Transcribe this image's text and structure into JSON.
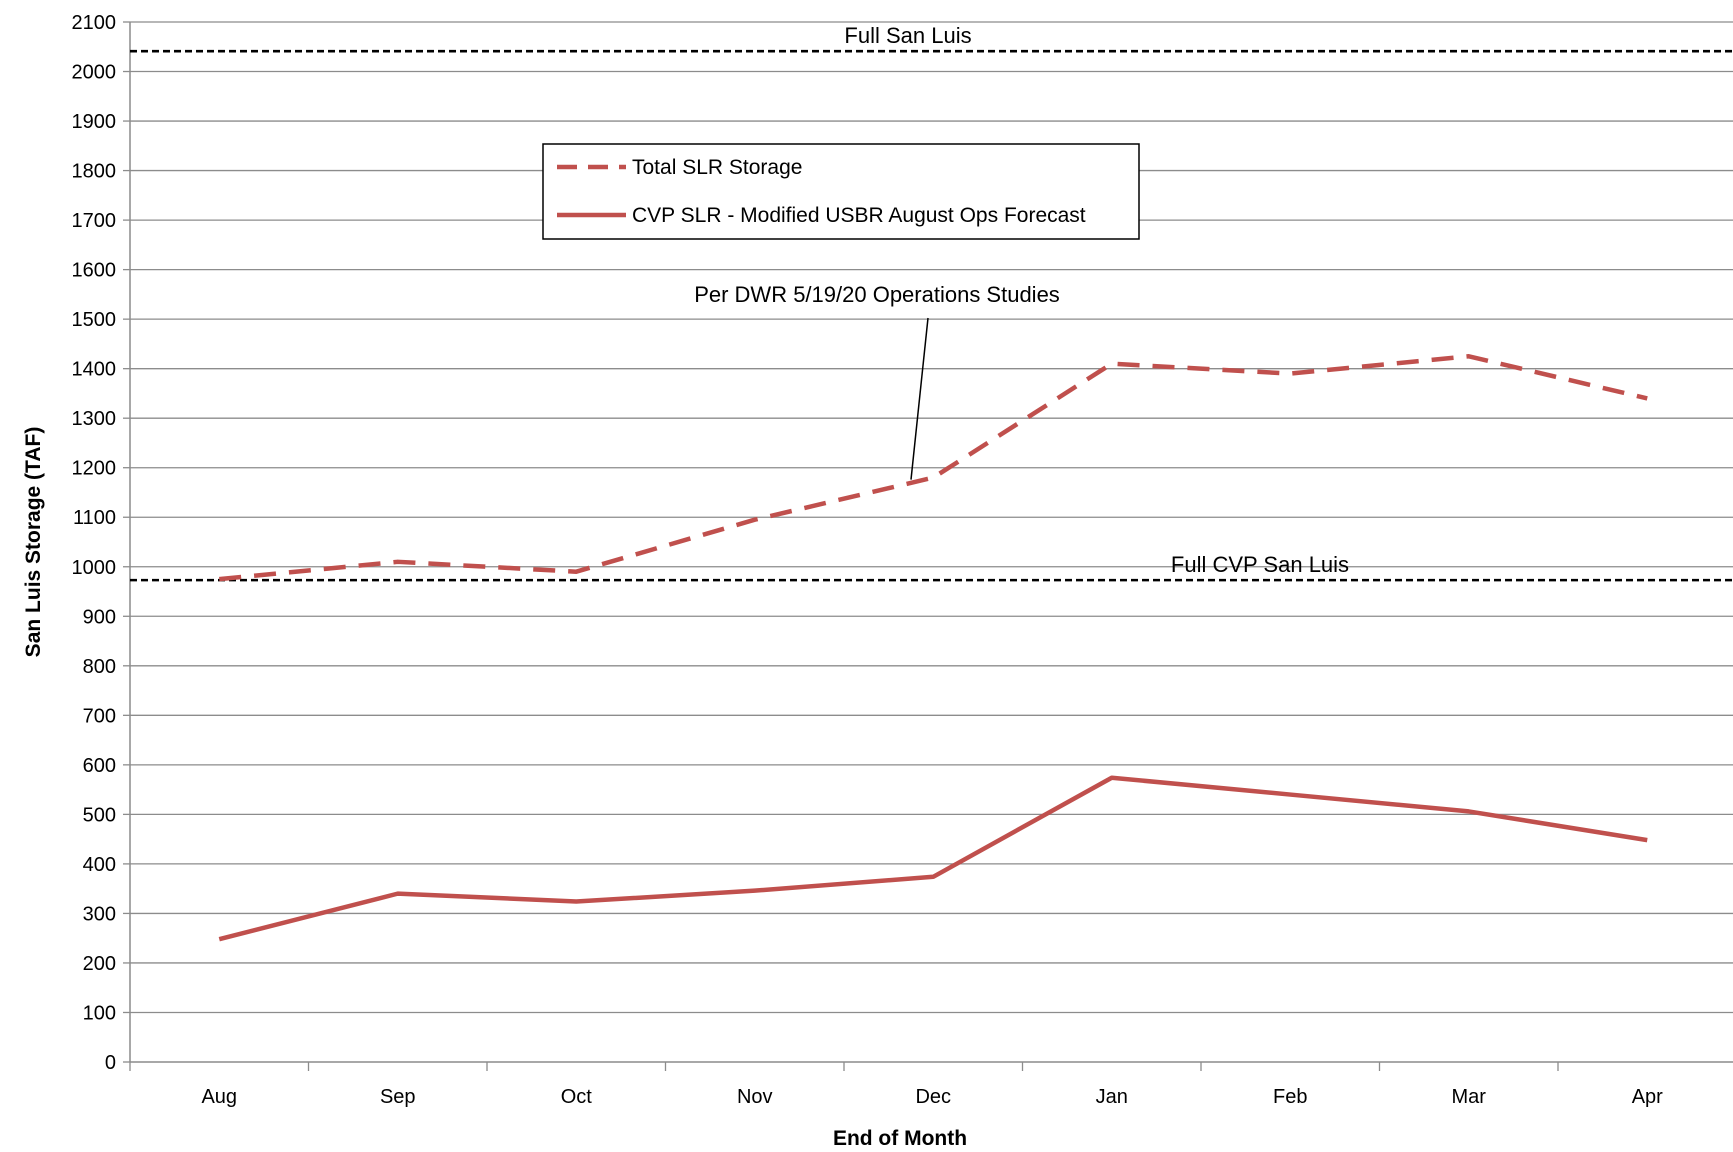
{
  "chart_data": {
    "type": "line",
    "title": "",
    "xlabel": "End of Month",
    "ylabel": "San Luis Storage (TAF)",
    "categories": [
      "Aug",
      "Sep",
      "Oct",
      "Nov",
      "Dec",
      "Jan",
      "Feb",
      "Mar",
      "Apr"
    ],
    "ylim": [
      0,
      2100
    ],
    "yticks": [
      0,
      100,
      200,
      300,
      400,
      500,
      600,
      700,
      800,
      900,
      1000,
      1100,
      1200,
      1300,
      1400,
      1500,
      1600,
      1700,
      1800,
      1900,
      2000,
      2100
    ],
    "grid": true,
    "series": [
      {
        "name": "Total SLR Storage",
        "style": "dashed",
        "color": "#c0504d",
        "values": [
          975,
          1010,
          990,
          1095,
          1180,
          1410,
          1390,
          1425,
          1340
        ]
      },
      {
        "name": "CVP SLR - Modified USBR August Ops Forecast",
        "style": "solid",
        "color": "#c0504d",
        "values": [
          248,
          340,
          324,
          346,
          374,
          574,
          540,
          506,
          448
        ]
      }
    ],
    "reference_lines": [
      {
        "label": "Full  San Luis",
        "value": 2041,
        "style": "dashed",
        "color": "#000000"
      },
      {
        "label": "Full CVP San Luis",
        "value": 973,
        "style": "dashed",
        "color": "#000000"
      }
    ],
    "annotations": [
      {
        "text": "Per DWR 5/19/20 Operations Studies",
        "points_to_series": "Total SLR Storage"
      }
    ],
    "legend_position": "upper-center"
  }
}
